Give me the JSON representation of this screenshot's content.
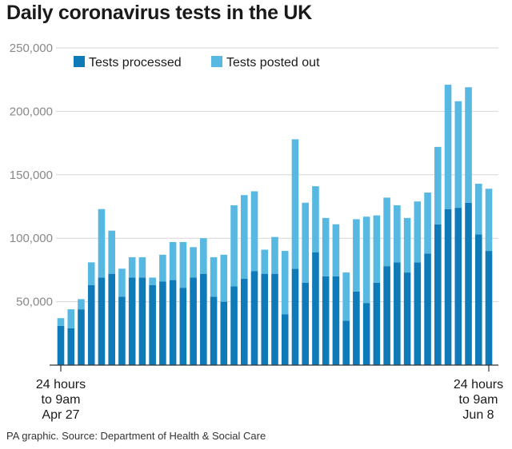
{
  "title": "Daily coronavirus tests in the UK",
  "source": "PA graphic. Source: Department of Health & Social Care",
  "colors": {
    "processed": "#0f7ab8",
    "posted": "#57b8e2",
    "grid": "#d6d6d6",
    "axis": "#333333"
  },
  "chart_data": {
    "type": "bar",
    "stacked": true,
    "title": "Daily coronavirus tests in the UK",
    "ylim": [
      0,
      250000
    ],
    "yticks": [
      50000,
      100000,
      150000,
      200000,
      250000
    ],
    "ytick_labels": [
      "50,000",
      "100,000",
      "150,000",
      "200,000",
      "250,000"
    ],
    "x_label_first": [
      "24 hours",
      "to 9am",
      "Apr 27"
    ],
    "x_label_last": [
      "24 hours",
      "to 9am",
      "Jun 8"
    ],
    "legend": [
      "Tests processed",
      "Tests posted out"
    ],
    "legend_position": "top-left",
    "series": [
      {
        "name": "Tests processed",
        "values": [
          31000,
          29000,
          44000,
          63000,
          69000,
          72000,
          54000,
          69000,
          69000,
          63000,
          66000,
          67000,
          61000,
          69000,
          72000,
          54000,
          50000,
          62000,
          68000,
          74000,
          72000,
          72000,
          40000,
          76000,
          65000,
          89000,
          70000,
          70000,
          35000,
          58000,
          49000,
          65000,
          78000,
          81000,
          73000,
          81000,
          88000,
          111000,
          123000,
          124000,
          128000,
          103000,
          90000
        ]
      },
      {
        "name": "Tests posted out",
        "values": [
          6000,
          15000,
          8000,
          18000,
          54000,
          34000,
          22000,
          16000,
          16000,
          6000,
          21000,
          30000,
          36000,
          24000,
          28000,
          31000,
          37000,
          64000,
          66000,
          63000,
          19000,
          29000,
          50000,
          102000,
          63000,
          52000,
          46000,
          41000,
          38000,
          57000,
          68000,
          53000,
          54000,
          45000,
          43000,
          48000,
          48000,
          61000,
          98000,
          84000,
          91000,
          40000,
          49000
        ]
      }
    ]
  }
}
